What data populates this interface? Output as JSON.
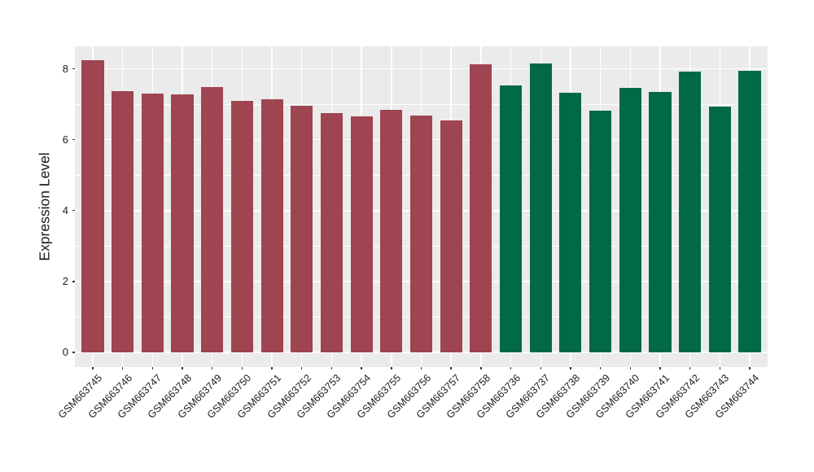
{
  "chart_data": {
    "type": "bar",
    "title": "",
    "xlabel": "",
    "ylabel": "Expression Level",
    "ylim": [
      0,
      8.63
    ],
    "yticks": [
      0,
      2,
      4,
      6,
      8
    ],
    "yminorticks": [
      1,
      3,
      5,
      7
    ],
    "grid": "on",
    "legend": "none",
    "colors": {
      "page_background": "#FFFFFF",
      "panel_background": "#EBEBEB",
      "gridline": "#FFFFFF",
      "tick_mark": "#333333",
      "axis_text": "#1A1A1A",
      "group_red": "#9F4451",
      "group_green": "#016946"
    },
    "categories": [
      "GSM663745",
      "GSM663746",
      "GSM663747",
      "GSM663748",
      "GSM663749",
      "GSM663750",
      "GSM663751",
      "GSM663752",
      "GSM663753",
      "GSM663754",
      "GSM663755",
      "GSM663756",
      "GSM663757",
      "GSM663758",
      "GSM663736",
      "GSM663737",
      "GSM663738",
      "GSM663739",
      "GSM663740",
      "GSM663741",
      "GSM663742",
      "GSM663743",
      "GSM663744"
    ],
    "values": [
      8.23,
      7.38,
      7.31,
      7.27,
      7.48,
      7.1,
      7.15,
      6.96,
      6.75,
      6.66,
      6.84,
      6.67,
      6.55,
      8.13,
      7.53,
      8.14,
      7.32,
      6.81,
      7.47,
      7.34,
      7.91,
      6.93,
      7.95
    ],
    "bar_colors": [
      "#9F4451",
      "#9F4451",
      "#9F4451",
      "#9F4451",
      "#9F4451",
      "#9F4451",
      "#9F4451",
      "#9F4451",
      "#9F4451",
      "#9F4451",
      "#9F4451",
      "#9F4451",
      "#9F4451",
      "#9F4451",
      "#016946",
      "#016946",
      "#016946",
      "#016946",
      "#016946",
      "#016946",
      "#016946",
      "#016946",
      "#016946"
    ]
  }
}
